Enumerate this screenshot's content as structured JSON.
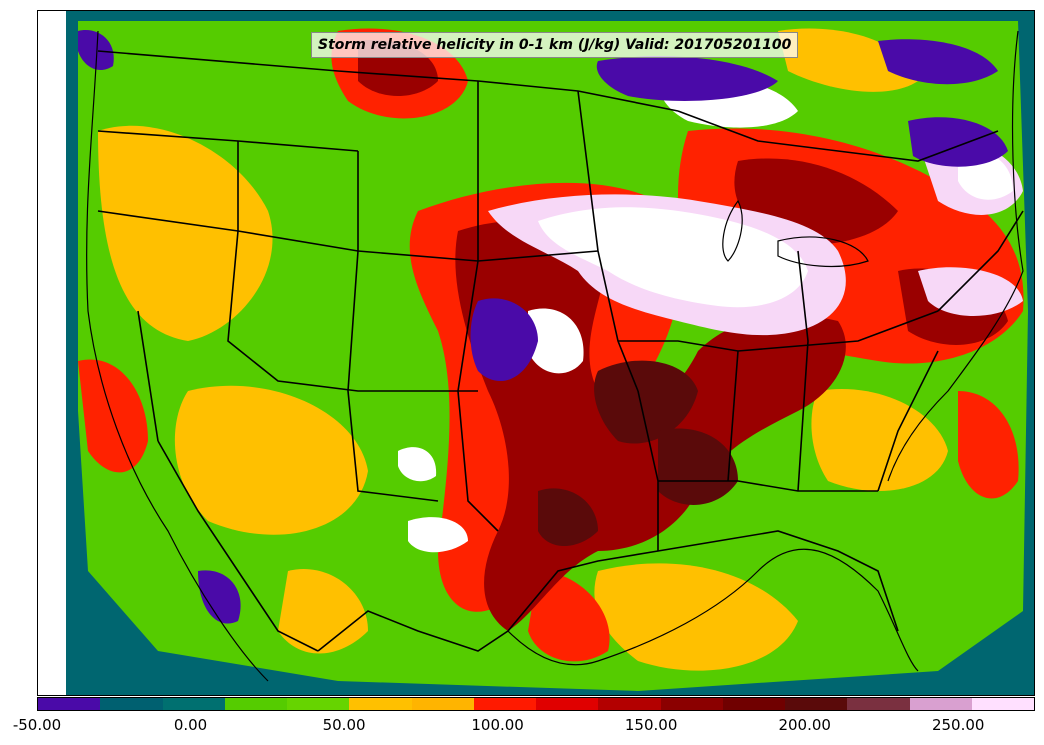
{
  "title": "Storm relative helicity in 0-1 km (J/kg) Valid: 201705201100",
  "colorbar": {
    "segments": [
      {
        "color": "#4a0aa8"
      },
      {
        "color": "#006070"
      },
      {
        "color": "#007070"
      },
      {
        "color": "#55cc00"
      },
      {
        "color": "#66d400"
      },
      {
        "color": "#ffc000"
      },
      {
        "color": "#ffb400"
      },
      {
        "color": "#ff1a00"
      },
      {
        "color": "#e00000"
      },
      {
        "color": "#b30000"
      },
      {
        "color": "#8b0000"
      },
      {
        "color": "#700000"
      },
      {
        "color": "#5a0a0a"
      },
      {
        "color": "#7a3040"
      },
      {
        "color": "#d9a0d0"
      },
      {
        "color": "#ffe0ff"
      }
    ],
    "tick_labels": [
      "-50.00",
      "0.00",
      "50.00",
      "100.00",
      "150.00",
      "200.00",
      "250.00"
    ]
  },
  "map": {
    "field": "storm relative helicity 0-1 km",
    "units": "J/kg",
    "region": "CONUS",
    "valid": "201705201100",
    "palette": {
      "ocean_teal": "#006670",
      "green": "#55cc00",
      "yellow": "#ffc000",
      "red": "#ff2200",
      "darkred": "#9a0000",
      "maroon": "#5a0a0a",
      "purple": "#4a0aa8",
      "white": "#ffffff",
      "pink": "#f7d8f7"
    }
  }
}
